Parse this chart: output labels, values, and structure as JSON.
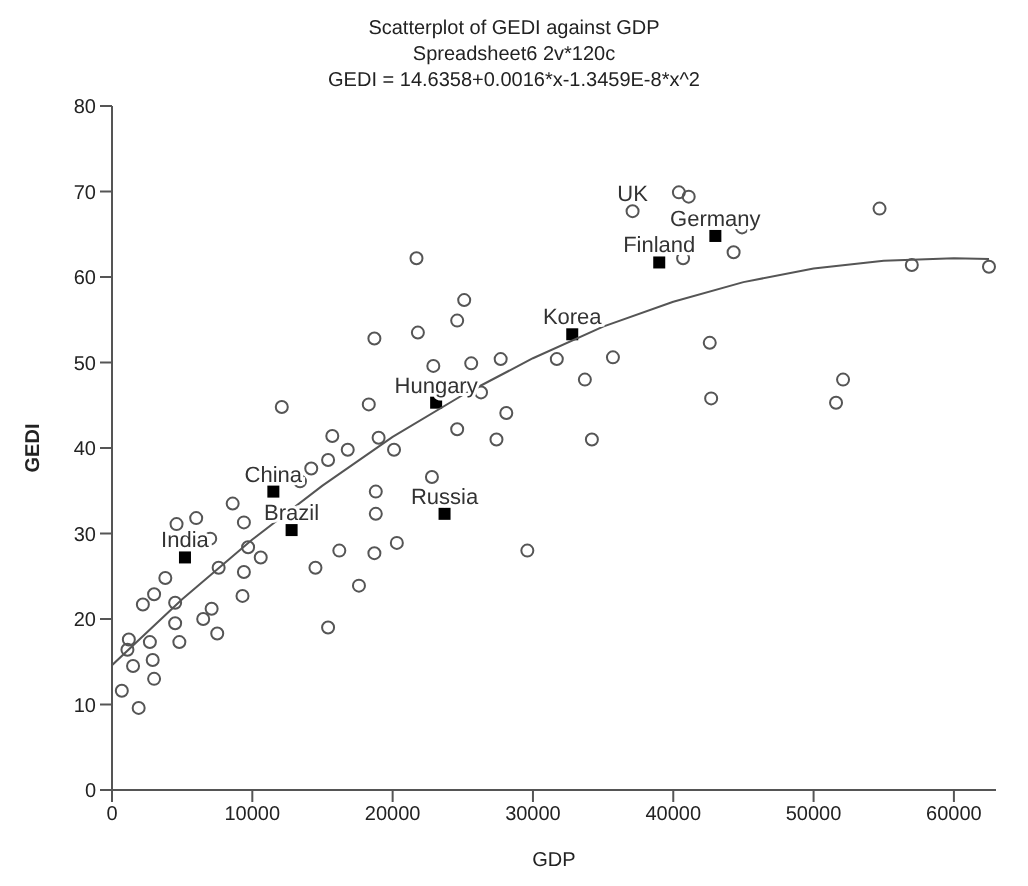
{
  "chart_data": {
    "type": "scatter",
    "title": "Scatterplot of GEDI against GDP",
    "subtitle": "Spreadsheet6 2v*120c\nGEDI = 14.6358+0.0016*x-1.3459E-8*x^2",
    "xlabel": "GDP",
    "ylabel": "GEDI",
    "xlim": [
      0,
      63000
    ],
    "ylim": [
      0,
      80
    ],
    "xticks": [
      0,
      10000,
      20000,
      30000,
      40000,
      50000,
      60000
    ],
    "yticks": [
      0,
      10,
      20,
      30,
      40,
      50,
      60,
      70,
      80
    ],
    "grid": false,
    "legend": false,
    "series": [
      {
        "marker": "circle",
        "color": "#555555",
        "x": [
          54700,
          57000,
          62500,
          37100,
          40400,
          41100,
          44900,
          44300,
          40700,
          31700,
          35700,
          33700,
          42600,
          42700,
          34200,
          52100,
          51600,
          21700,
          25100,
          24600,
          21800,
          18700,
          22900,
          25600,
          27700,
          26300,
          28100,
          24600,
          27400,
          18300,
          12100,
          15700,
          16800,
          19000,
          20100,
          15400,
          13400,
          14200,
          18800,
          18800,
          20300,
          18700,
          17600,
          15400,
          22800,
          29600,
          10600,
          14500,
          16200,
          8600,
          6000,
          4600,
          9400,
          7000,
          9700,
          7600,
          9400,
          3800,
          3000,
          2200,
          4500,
          9300,
          7100,
          6500,
          7500,
          4500,
          4800,
          2700,
          1200,
          1100,
          2900,
          3000,
          1500,
          700,
          1900
        ],
        "values": [
          68,
          61.4,
          61.2,
          67.7,
          69.9,
          69.4,
          65.8,
          62.9,
          62.2,
          50.4,
          50.6,
          48,
          52.3,
          45.8,
          41,
          48,
          45.3,
          62.2,
          57.3,
          54.9,
          53.5,
          52.8,
          49.6,
          49.9,
          50.4,
          46.5,
          44.1,
          42.2,
          41,
          45.1,
          44.8,
          41.4,
          39.8,
          41.2,
          39.8,
          38.6,
          36.1,
          37.6,
          34.9,
          32.3,
          28.9,
          27.7,
          23.9,
          19,
          36.6,
          28,
          27.2,
          26,
          28,
          33.5,
          31.8,
          31.1,
          31.3,
          29.4,
          28.4,
          26,
          25.5,
          24.8,
          22.9,
          21.7,
          21.9,
          22.7,
          21.2,
          20,
          18.3,
          19.5,
          17.3,
          17.3,
          17.6,
          16.4,
          15.2,
          13,
          14.5,
          11.6,
          9.6
        ]
      },
      {
        "marker": "square",
        "color": "#000000",
        "x": [
          43000,
          39000,
          32800,
          23100,
          11500,
          23700,
          12800,
          5200
        ],
        "values": [
          64.8,
          61.7,
          53.3,
          45.3,
          34.9,
          32.3,
          30.4,
          27.2
        ]
      },
      {
        "type": "line",
        "marker": "none",
        "color": "#555555",
        "x": [
          0,
          5000,
          10000,
          15000,
          20000,
          25000,
          30000,
          35000,
          40000,
          45000,
          50000,
          55000,
          60000,
          62500
        ],
        "values": [
          14.6,
          22.3,
          29.3,
          35.6,
          41.3,
          46.2,
          50.5,
          54.2,
          57.1,
          59.4,
          61,
          61.9,
          62.2,
          62.1
        ]
      }
    ],
    "annotations": [
      {
        "text": "UK",
        "x": 37100,
        "y": 67.7
      },
      {
        "text": "Germany",
        "x": 43000,
        "y": 64.8
      },
      {
        "text": "Finland",
        "x": 39000,
        "y": 61.7
      },
      {
        "text": "Korea",
        "x": 32800,
        "y": 53.3
      },
      {
        "text": "Hungary",
        "x": 23100,
        "y": 45.3
      },
      {
        "text": "China",
        "x": 11500,
        "y": 34.9
      },
      {
        "text": "Russia",
        "x": 23700,
        "y": 32.3
      },
      {
        "text": "Brazil",
        "x": 12800,
        "y": 30.4
      },
      {
        "text": "India",
        "x": 5200,
        "y": 27.2
      }
    ]
  }
}
